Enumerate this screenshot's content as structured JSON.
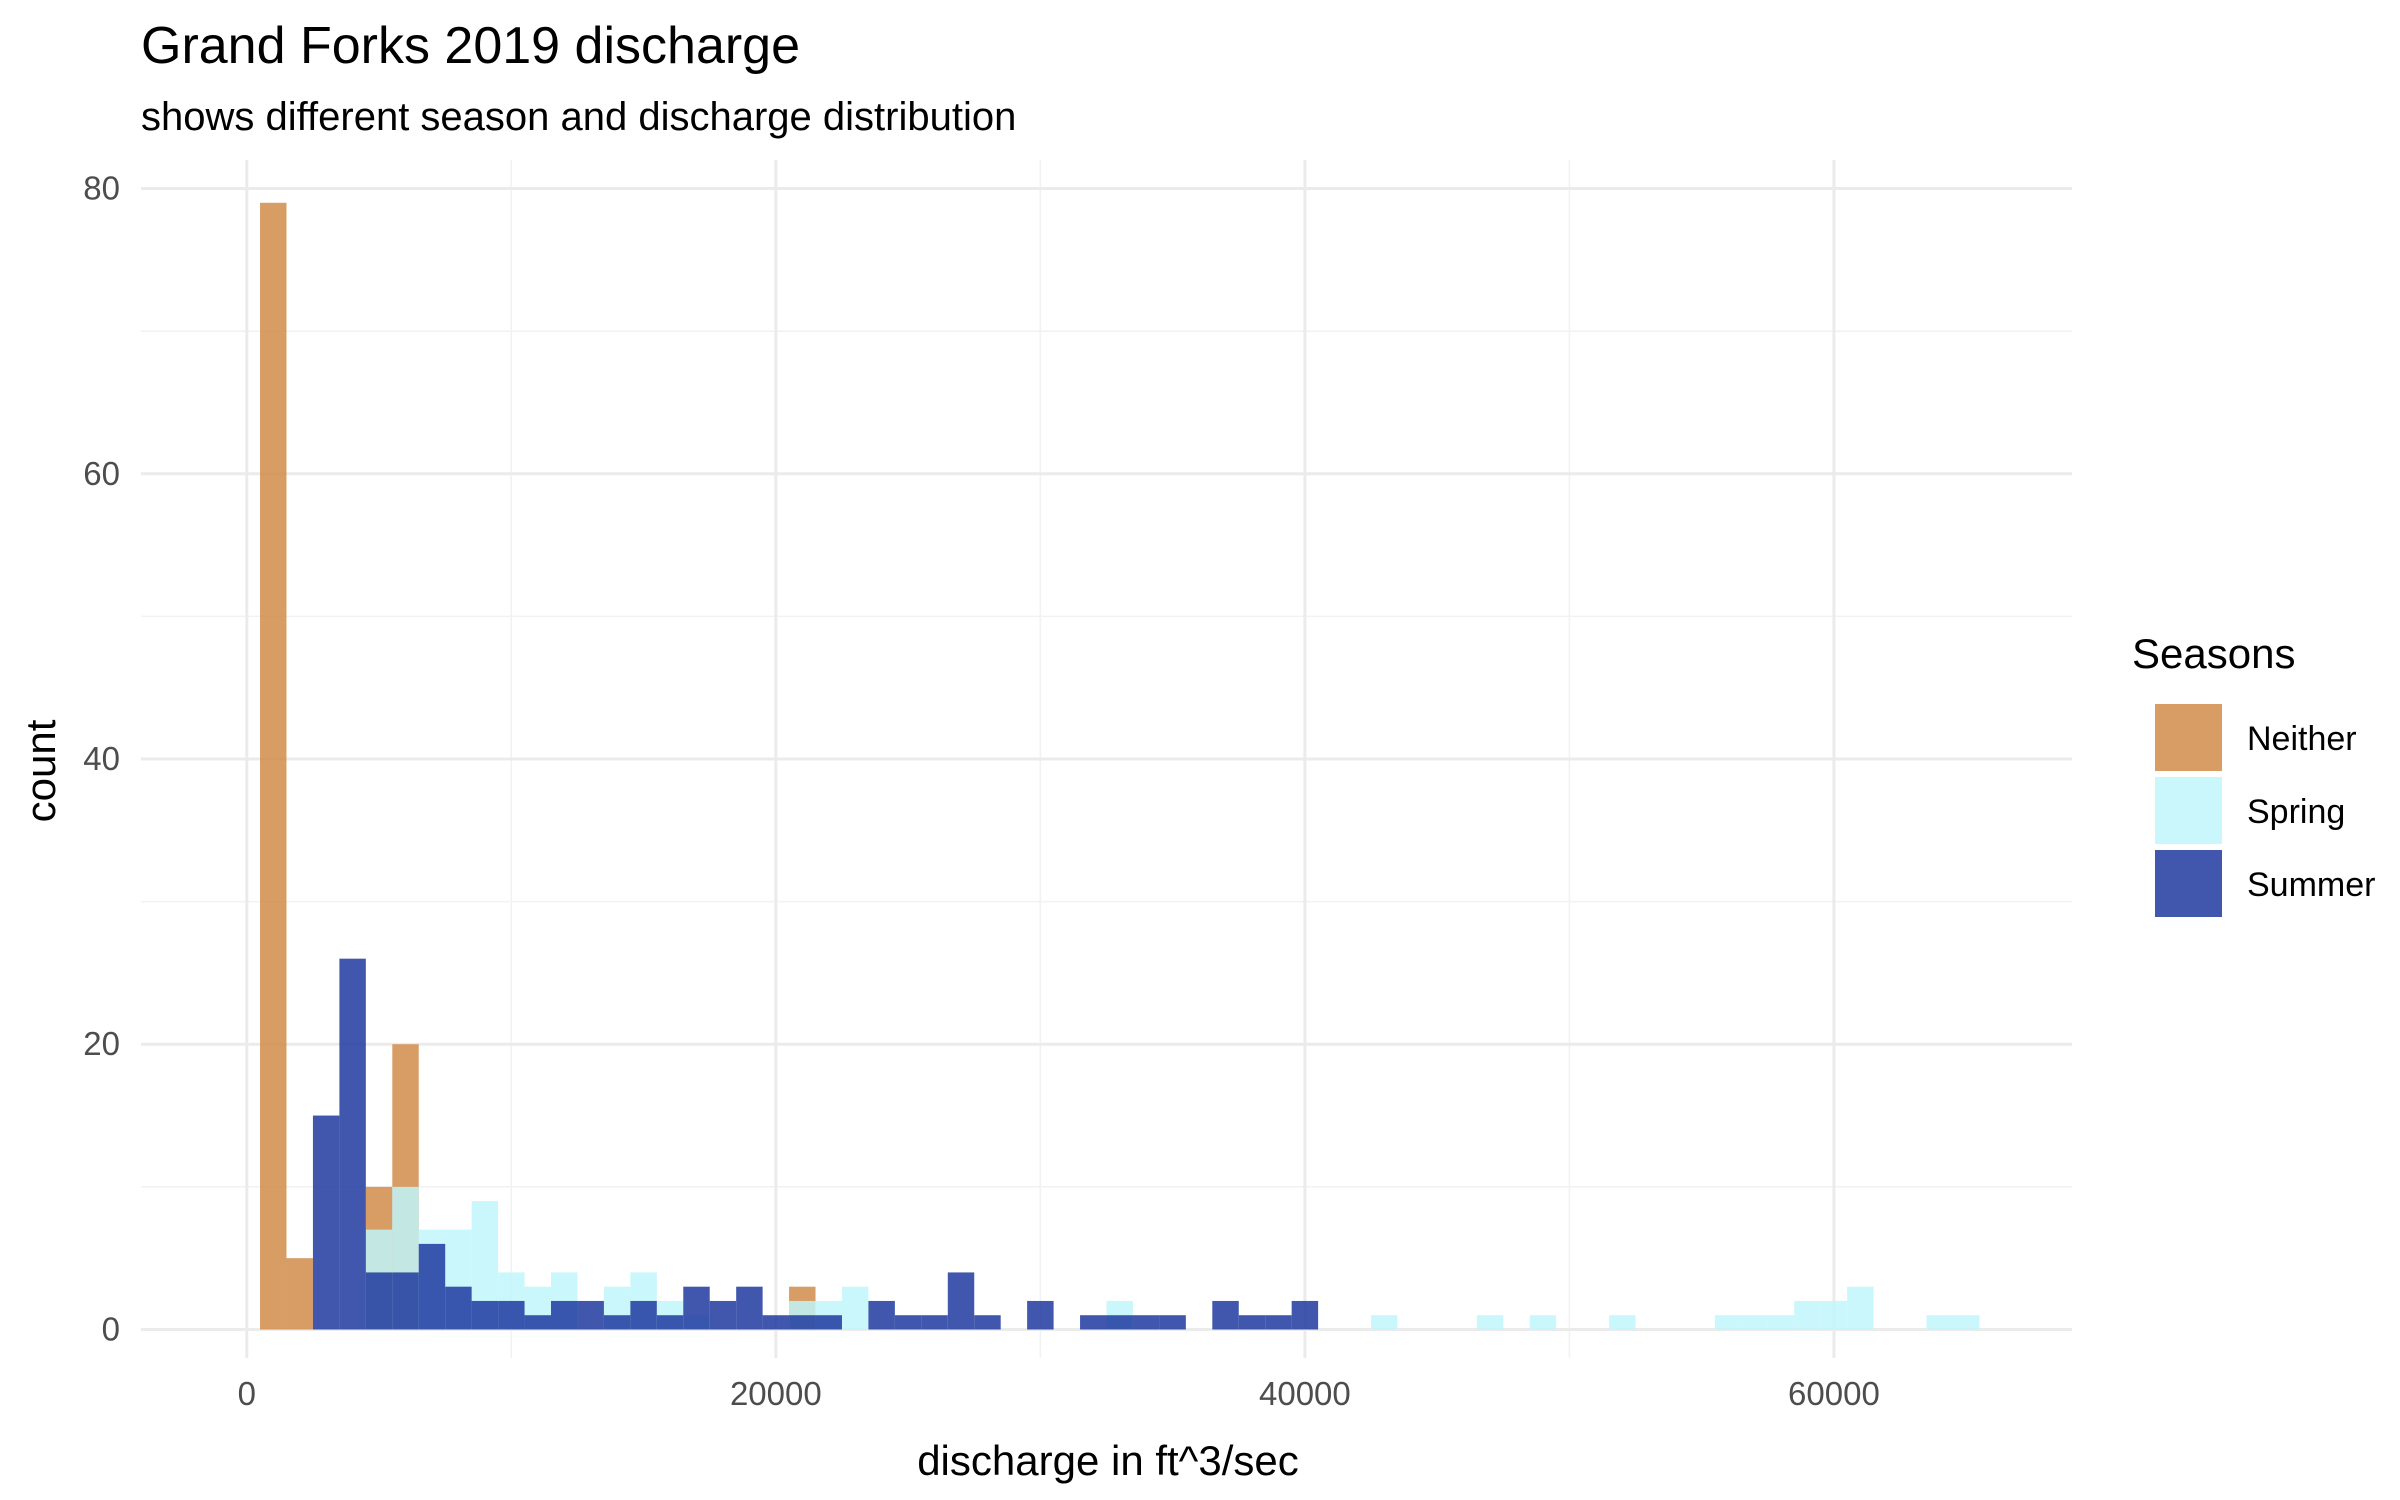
{
  "chart_data": {
    "type": "bar",
    "title": "Grand Forks 2019 discharge",
    "subtitle": "shows different season and discharge distribution",
    "xlabel": "discharge in ft^3/sec",
    "ylabel": "count",
    "xlim": [
      -4000,
      69000
    ],
    "ylim": [
      -2,
      82
    ],
    "x_ticks": [
      0,
      20000,
      40000,
      60000
    ],
    "x_tick_labels": [
      "0",
      "20000",
      "40000",
      "60000"
    ],
    "y_ticks": [
      0,
      20,
      40,
      60,
      80
    ],
    "y_tick_labels": [
      "0",
      "20",
      "40",
      "60",
      "80"
    ],
    "grid": true,
    "bin_width": 1000,
    "legend": {
      "title": "Seasons",
      "placement": "right",
      "entries": [
        "Neither",
        "Spring",
        "Summer"
      ]
    },
    "series": [
      {
        "name": "Neither",
        "color": "#d08c4a",
        "bins": [
          {
            "x0": 500,
            "x1": 1500,
            "count": 79
          },
          {
            "x0": 1500,
            "x1": 2500,
            "count": 5
          },
          {
            "x0": 4500,
            "x1": 5500,
            "count": 10
          },
          {
            "x0": 5500,
            "x1": 6500,
            "count": 20
          },
          {
            "x0": 20500,
            "x1": 21500,
            "count": 3
          }
        ]
      },
      {
        "name": "Spring",
        "color": "#bff6fa",
        "bins": [
          {
            "x0": 4500,
            "x1": 5500,
            "count": 7
          },
          {
            "x0": 5500,
            "x1": 6500,
            "count": 10
          },
          {
            "x0": 6500,
            "x1": 7500,
            "count": 7
          },
          {
            "x0": 7500,
            "x1": 8500,
            "count": 7
          },
          {
            "x0": 8500,
            "x1": 9500,
            "count": 9
          },
          {
            "x0": 9500,
            "x1": 10500,
            "count": 4
          },
          {
            "x0": 10500,
            "x1": 11500,
            "count": 3
          },
          {
            "x0": 11500,
            "x1": 12500,
            "count": 4
          },
          {
            "x0": 13500,
            "x1": 14500,
            "count": 3
          },
          {
            "x0": 14500,
            "x1": 15500,
            "count": 4
          },
          {
            "x0": 15500,
            "x1": 16500,
            "count": 2
          },
          {
            "x0": 16500,
            "x1": 17500,
            "count": 1
          },
          {
            "x0": 20500,
            "x1": 21500,
            "count": 2
          },
          {
            "x0": 21500,
            "x1": 22500,
            "count": 2
          },
          {
            "x0": 22500,
            "x1": 23500,
            "count": 3
          },
          {
            "x0": 32500,
            "x1": 33500,
            "count": 2
          },
          {
            "x0": 42500,
            "x1": 43500,
            "count": 1
          },
          {
            "x0": 46500,
            "x1": 47500,
            "count": 1
          },
          {
            "x0": 48500,
            "x1": 49500,
            "count": 1
          },
          {
            "x0": 51500,
            "x1": 52500,
            "count": 1
          },
          {
            "x0": 55500,
            "x1": 56500,
            "count": 1
          },
          {
            "x0": 56500,
            "x1": 57500,
            "count": 1
          },
          {
            "x0": 57500,
            "x1": 58500,
            "count": 1
          },
          {
            "x0": 58500,
            "x1": 59500,
            "count": 2
          },
          {
            "x0": 59500,
            "x1": 60500,
            "count": 2
          },
          {
            "x0": 60500,
            "x1": 61500,
            "count": 3
          },
          {
            "x0": 63500,
            "x1": 64500,
            "count": 1
          },
          {
            "x0": 64500,
            "x1": 65500,
            "count": 1
          }
        ]
      },
      {
        "name": "Summer",
        "color": "#1f3a9f",
        "bins": [
          {
            "x0": 2500,
            "x1": 3500,
            "count": 15
          },
          {
            "x0": 3500,
            "x1": 4500,
            "count": 26
          },
          {
            "x0": 4500,
            "x1": 5500,
            "count": 4
          },
          {
            "x0": 5500,
            "x1": 6500,
            "count": 4
          },
          {
            "x0": 6500,
            "x1": 7500,
            "count": 6
          },
          {
            "x0": 7500,
            "x1": 8500,
            "count": 3
          },
          {
            "x0": 8500,
            "x1": 9500,
            "count": 2
          },
          {
            "x0": 9500,
            "x1": 10500,
            "count": 2
          },
          {
            "x0": 10500,
            "x1": 11500,
            "count": 1
          },
          {
            "x0": 11500,
            "x1": 12500,
            "count": 2
          },
          {
            "x0": 12500,
            "x1": 13500,
            "count": 2
          },
          {
            "x0": 13500,
            "x1": 14500,
            "count": 1
          },
          {
            "x0": 14500,
            "x1": 15500,
            "count": 2
          },
          {
            "x0": 15500,
            "x1": 16500,
            "count": 1
          },
          {
            "x0": 16500,
            "x1": 17500,
            "count": 3
          },
          {
            "x0": 17500,
            "x1": 18500,
            "count": 2
          },
          {
            "x0": 18500,
            "x1": 19500,
            "count": 3
          },
          {
            "x0": 19500,
            "x1": 20500,
            "count": 1
          },
          {
            "x0": 20500,
            "x1": 21500,
            "count": 1
          },
          {
            "x0": 21500,
            "x1": 22500,
            "count": 1
          },
          {
            "x0": 23500,
            "x1": 24500,
            "count": 2
          },
          {
            "x0": 24500,
            "x1": 25500,
            "count": 1
          },
          {
            "x0": 25500,
            "x1": 26500,
            "count": 1
          },
          {
            "x0": 26500,
            "x1": 27500,
            "count": 4
          },
          {
            "x0": 27500,
            "x1": 28500,
            "count": 1
          },
          {
            "x0": 29500,
            "x1": 30500,
            "count": 2
          },
          {
            "x0": 31500,
            "x1": 32500,
            "count": 1
          },
          {
            "x0": 32500,
            "x1": 33500,
            "count": 1
          },
          {
            "x0": 33500,
            "x1": 34500,
            "count": 1
          },
          {
            "x0": 34500,
            "x1": 35500,
            "count": 1
          },
          {
            "x0": 36500,
            "x1": 37500,
            "count": 2
          },
          {
            "x0": 37500,
            "x1": 38500,
            "count": 1
          },
          {
            "x0": 38500,
            "x1": 39500,
            "count": 1
          },
          {
            "x0": 39500,
            "x1": 40500,
            "count": 2
          }
        ]
      }
    ]
  }
}
